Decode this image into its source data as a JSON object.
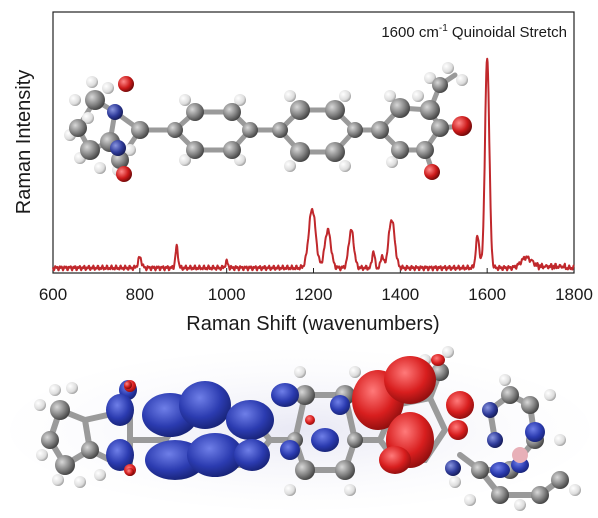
{
  "chart_data": {
    "type": "line",
    "title": "",
    "xlabel": "Raman Shift (wavenumbers)",
    "ylabel": "Raman Intensity",
    "xlim": [
      600,
      1800
    ],
    "ylim": [
      0,
      1
    ],
    "x_ticks": [
      "600",
      "800",
      "1000",
      "1200",
      "1400",
      "1600",
      "1800"
    ],
    "grid": false,
    "line_color": "#c0282c",
    "annotation": {
      "prefix": "1600 cm",
      "superscript": "-1",
      "suffix": " Quinoidal Stretch"
    },
    "series": [
      {
        "color": "#c0282c",
        "peaks": [
          {
            "x": 800,
            "y": 0.05
          },
          {
            "x": 885,
            "y": 0.1
          },
          {
            "x": 1000,
            "y": 0.03
          },
          {
            "x": 1197,
            "y": 0.28
          },
          {
            "x": 1233,
            "y": 0.18
          },
          {
            "x": 1287,
            "y": 0.18
          },
          {
            "x": 1338,
            "y": 0.08
          },
          {
            "x": 1358,
            "y": 0.06
          },
          {
            "x": 1380,
            "y": 0.23
          },
          {
            "x": 1578,
            "y": 0.15
          },
          {
            "x": 1600,
            "y": 1.0
          },
          {
            "x": 1690,
            "y": 0.05
          }
        ]
      }
    ]
  },
  "figure": {
    "molecule_atom_colors": {
      "carbon": "#8a8a8a",
      "hydrogen": "#e6e6e6",
      "nitrogen": "#2f3b9a",
      "oxygen": "#cc1a1a"
    },
    "orbital_colors": {
      "negative_lobe": "#2b3bb0",
      "positive_lobe": "#d81e1e"
    }
  }
}
